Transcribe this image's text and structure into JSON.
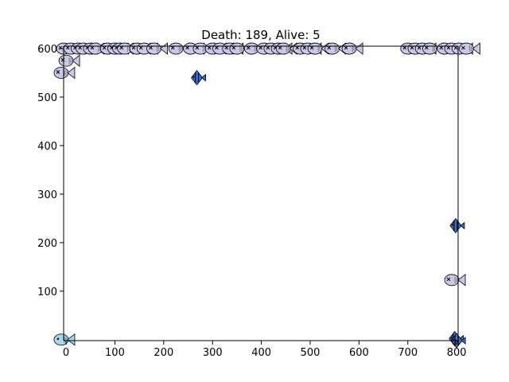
{
  "chart_data": {
    "type": "scatter",
    "title": "Death: 189, Alive: 5",
    "xlabel": "",
    "ylabel": "",
    "xlim": [
      -5,
      803
    ],
    "ylim": [
      -2,
      605
    ],
    "x_ticks": [
      0,
      100,
      200,
      300,
      400,
      500,
      600,
      700,
      800
    ],
    "y_ticks": [
      100,
      200,
      300,
      400,
      500,
      600
    ],
    "x_tick_labels": [
      "0",
      "100",
      "200",
      "300",
      "400",
      "500",
      "600",
      "700",
      "800"
    ],
    "y_tick_labels": [
      "100",
      "200",
      "300",
      "400",
      "500",
      "600"
    ],
    "grid": false,
    "dead_color": "#c8c8e8",
    "alive_color": "#a8d8ec",
    "spiky_color": "#3a70c8",
    "dead_fish": [
      {
        "x": -5,
        "y": 600
      },
      {
        "x": 10,
        "y": 600
      },
      {
        "x": 25,
        "y": 600
      },
      {
        "x": 35,
        "y": 600
      },
      {
        "x": 50,
        "y": 600
      },
      {
        "x": 60,
        "y": 600
      },
      {
        "x": 85,
        "y": 600
      },
      {
        "x": 100,
        "y": 600
      },
      {
        "x": 110,
        "y": 600
      },
      {
        "x": 120,
        "y": 600
      },
      {
        "x": 145,
        "y": 600
      },
      {
        "x": 160,
        "y": 600
      },
      {
        "x": 180,
        "y": 600
      },
      {
        "x": 225,
        "y": 600
      },
      {
        "x": 255,
        "y": 600
      },
      {
        "x": 275,
        "y": 600
      },
      {
        "x": 300,
        "y": 600
      },
      {
        "x": 315,
        "y": 600
      },
      {
        "x": 335,
        "y": 600
      },
      {
        "x": 350,
        "y": 600
      },
      {
        "x": 380,
        "y": 600
      },
      {
        "x": 405,
        "y": 600
      },
      {
        "x": 420,
        "y": 600
      },
      {
        "x": 435,
        "y": 600
      },
      {
        "x": 445,
        "y": 600
      },
      {
        "x": 480,
        "y": 600
      },
      {
        "x": 495,
        "y": 600
      },
      {
        "x": 510,
        "y": 600
      },
      {
        "x": 545,
        "y": 600
      },
      {
        "x": 580,
        "y": 600
      },
      {
        "x": 700,
        "y": 600
      },
      {
        "x": 715,
        "y": 600
      },
      {
        "x": 730,
        "y": 600
      },
      {
        "x": 745,
        "y": 600
      },
      {
        "x": 775,
        "y": 600
      },
      {
        "x": 790,
        "y": 600
      },
      {
        "x": 805,
        "y": 600
      },
      {
        "x": 820,
        "y": 600
      },
      {
        "x": 0,
        "y": 575
      },
      {
        "x": -10,
        "y": 550
      },
      {
        "x": 790,
        "y": 123
      }
    ],
    "alive_fish": [
      {
        "x": -10,
        "y": 0
      }
    ],
    "spiky_fish": [
      {
        "x": 268,
        "y": 540
      },
      {
        "x": 798,
        "y": 235
      },
      {
        "x": 796,
        "y": 2
      },
      {
        "x": 800,
        "y": -2
      }
    ]
  }
}
